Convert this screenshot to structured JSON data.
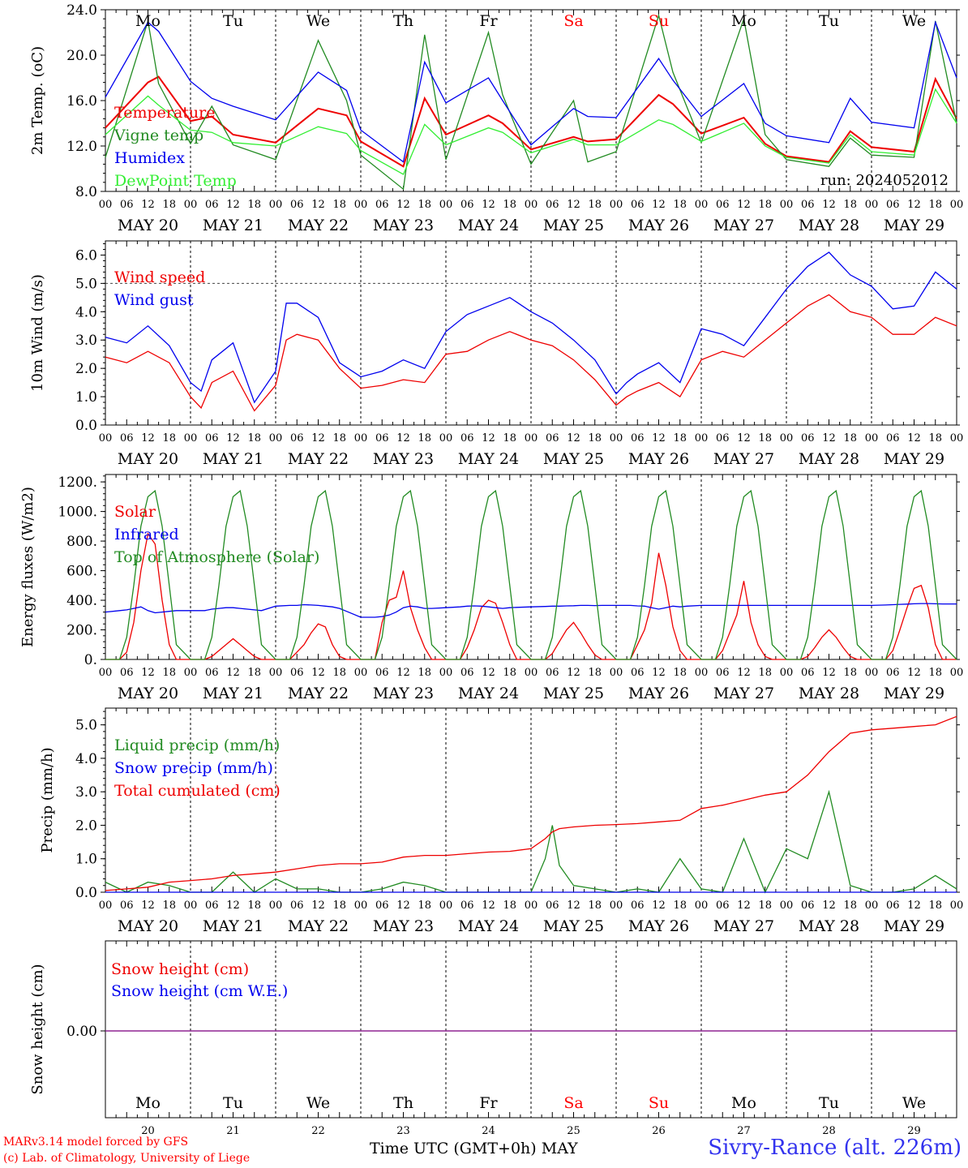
{
  "footer": {
    "credit_line1": "MARv3.14 model forced by GFS",
    "credit_line2": "(c) Lab. of Climatology, University of Liege",
    "time_axis_title": "Time UTC (GMT+0h)",
    "month": "MAY",
    "station": "Sivry-Rance (alt. 226m)"
  },
  "days": {
    "weekdays": [
      "Mo",
      "Tu",
      "We",
      "Th",
      "Fr",
      "Sa",
      "Su",
      "Mo",
      "Tu",
      "We"
    ],
    "weekend_flags": [
      false,
      false,
      false,
      false,
      false,
      true,
      true,
      false,
      false,
      false
    ],
    "date_labels": [
      "MAY 20",
      "MAY 21",
      "MAY 22",
      "MAY 23",
      "MAY 24",
      "MAY 25",
      "MAY 26",
      "MAY 27",
      "MAY 28",
      "MAY 29"
    ],
    "day_numbers": [
      "20",
      "21",
      "22",
      "23",
      "24",
      "25",
      "26",
      "27",
      "28",
      "29"
    ],
    "hour_ticks": [
      "00",
      "06",
      "12",
      "18"
    ],
    "last_hour": "00"
  },
  "colors": {
    "red": "#ee0000",
    "green": "#228b22",
    "blue": "#0000ee",
    "lightgreen": "#33ee33",
    "purple": "#7b1fa2",
    "weekend": "#ff0000"
  },
  "chart_data": [
    {
      "type": "line",
      "ylabel": "2m Temp. (oC)",
      "ylim": [
        8,
        24
      ],
      "yticks": [
        "8.0",
        "12.0",
        "16.0",
        "20.0",
        "24.0"
      ],
      "annotation": "run: 2024052012",
      "x_hours": [
        0,
        12,
        15,
        24,
        30,
        36,
        48,
        60,
        68,
        72,
        84,
        90,
        96,
        108,
        112,
        120,
        132,
        136,
        144,
        156,
        160,
        168,
        180,
        186,
        192,
        204,
        210,
        216,
        228,
        234,
        240
      ],
      "series": [
        {
          "name": "Temperature",
          "color": "red",
          "values": [
            13.6,
            17.6,
            18.1,
            14.2,
            14.6,
            13.0,
            12.3,
            15.3,
            14.7,
            12.4,
            10.2,
            16.2,
            13.0,
            14.7,
            14.0,
            11.7,
            12.8,
            12.4,
            12.6,
            16.5,
            15.7,
            13.1,
            14.5,
            12.2,
            11.1,
            10.6,
            13.3,
            11.9,
            11.5,
            17.9,
            14.4
          ]
        },
        {
          "name": "Vigne temp",
          "color": "green",
          "values": [
            11.0,
            23.0,
            17.5,
            12.2,
            15.5,
            12.1,
            10.8,
            21.3,
            16.0,
            11.2,
            8.2,
            21.8,
            10.8,
            22.0,
            16.5,
            10.4,
            16.0,
            10.6,
            11.5,
            23.5,
            18.5,
            12.3,
            23.2,
            13.0,
            10.8,
            10.2,
            12.7,
            11.2,
            11.0,
            23.0,
            14.0
          ]
        },
        {
          "name": "Humidex",
          "color": "blue",
          "values": [
            16.3,
            22.9,
            22.1,
            17.7,
            16.2,
            15.5,
            14.3,
            18.5,
            16.9,
            13.4,
            10.6,
            19.4,
            15.8,
            18.0,
            16.0,
            12.1,
            15.3,
            14.6,
            14.5,
            19.7,
            17.8,
            14.6,
            17.5,
            14.0,
            12.9,
            12.3,
            16.2,
            14.1,
            13.6,
            22.9,
            18.0
          ]
        },
        {
          "name": "DewPoint Temp",
          "color": "lightgreen",
          "values": [
            13.0,
            16.4,
            15.6,
            13.4,
            13.2,
            12.3,
            12.0,
            13.7,
            13.1,
            11.6,
            9.5,
            13.9,
            12.1,
            13.6,
            13.2,
            11.4,
            12.6,
            12.1,
            12.1,
            14.3,
            13.9,
            12.4,
            14.0,
            12.0,
            11.0,
            10.5,
            13.0,
            11.5,
            11.2,
            17.0,
            14.0
          ]
        }
      ]
    },
    {
      "type": "line",
      "ylabel": "10m Wind (m/s)",
      "ylim": [
        0,
        6.5
      ],
      "yticks": [
        "0.0",
        "1.0",
        "2.0",
        "3.0",
        "4.0",
        "5.0",
        "6.0"
      ],
      "reference_line": 5.0,
      "x_hours": [
        0,
        6,
        12,
        18,
        24,
        27,
        30,
        36,
        42,
        48,
        51,
        54,
        60,
        66,
        72,
        78,
        84,
        90,
        96,
        102,
        108,
        114,
        120,
        126,
        132,
        138,
        144,
        147,
        150,
        156,
        162,
        168,
        174,
        180,
        186,
        192,
        198,
        204,
        210,
        216,
        222,
        228,
        234,
        240
      ],
      "series": [
        {
          "name": "Wind speed",
          "color": "red",
          "values": [
            2.4,
            2.2,
            2.6,
            2.2,
            1.0,
            0.6,
            1.5,
            1.9,
            0.5,
            1.4,
            3.0,
            3.2,
            3.0,
            2.0,
            1.3,
            1.4,
            1.6,
            1.5,
            2.5,
            2.6,
            3.0,
            3.3,
            3.0,
            2.8,
            2.3,
            1.6,
            0.7,
            1.0,
            1.2,
            1.5,
            1.0,
            2.3,
            2.6,
            2.4,
            3.0,
            3.6,
            4.2,
            4.6,
            4.0,
            3.8,
            3.2,
            3.2,
            3.8,
            3.5
          ]
        },
        {
          "name": "Wind gust",
          "color": "blue",
          "values": [
            3.1,
            2.9,
            3.5,
            2.8,
            1.5,
            1.2,
            2.3,
            2.9,
            0.8,
            1.9,
            4.3,
            4.3,
            3.8,
            2.2,
            1.7,
            1.9,
            2.3,
            2.0,
            3.3,
            3.9,
            4.2,
            4.5,
            4.0,
            3.6,
            3.0,
            2.3,
            1.1,
            1.5,
            1.8,
            2.2,
            1.5,
            3.4,
            3.2,
            2.8,
            3.8,
            4.8,
            5.6,
            6.1,
            5.3,
            4.9,
            4.1,
            4.2,
            5.4,
            4.8
          ]
        }
      ]
    },
    {
      "type": "line",
      "ylabel": "Energy fluxes (W/m2)",
      "ylim": [
        0,
        1250
      ],
      "yticks": [
        "0.",
        "200.",
        "400.",
        "600.",
        "800.",
        "1000.",
        "1200."
      ],
      "x_hours": [
        0,
        4,
        6,
        8,
        10,
        12,
        14,
        16,
        18,
        20,
        24,
        28,
        30,
        32,
        34,
        36,
        38,
        40,
        42,
        44,
        48,
        52,
        54,
        56,
        58,
        60,
        62,
        64,
        66,
        68,
        72,
        76,
        78,
        80,
        82,
        84,
        86,
        88,
        90,
        92,
        96,
        100,
        102,
        104,
        106,
        108,
        110,
        112,
        114,
        116,
        120,
        124,
        126,
        128,
        130,
        132,
        134,
        136,
        138,
        140,
        144,
        148,
        150,
        152,
        154,
        156,
        158,
        160,
        162,
        164,
        168,
        172,
        174,
        176,
        178,
        180,
        182,
        184,
        186,
        188,
        192,
        196,
        198,
        200,
        202,
        204,
        206,
        208,
        210,
        212,
        216,
        220,
        222,
        224,
        226,
        228,
        230,
        232,
        234,
        236,
        240
      ],
      "series": [
        {
          "name": "Solar",
          "color": "red",
          "values": [
            0,
            0,
            50,
            250,
            600,
            850,
            780,
            400,
            100,
            0,
            0,
            0,
            20,
            60,
            100,
            140,
            100,
            60,
            20,
            0,
            0,
            0,
            50,
            100,
            180,
            240,
            220,
            100,
            20,
            0,
            0,
            0,
            250,
            400,
            420,
            600,
            350,
            200,
            80,
            0,
            0,
            0,
            80,
            200,
            350,
            400,
            380,
            250,
            100,
            0,
            0,
            0,
            40,
            120,
            200,
            250,
            180,
            100,
            30,
            0,
            0,
            0,
            100,
            200,
            380,
            720,
            500,
            220,
            60,
            0,
            0,
            0,
            60,
            180,
            300,
            530,
            250,
            100,
            20,
            0,
            0,
            0,
            20,
            80,
            150,
            200,
            150,
            80,
            20,
            0,
            0,
            0,
            60,
            200,
            350,
            480,
            500,
            350,
            100,
            0,
            0
          ]
        },
        {
          "name": "Infrared",
          "color": "blue",
          "values": [
            320,
            330,
            335,
            345,
            355,
            330,
            315,
            320,
            325,
            330,
            330,
            330,
            340,
            345,
            350,
            350,
            345,
            340,
            335,
            330,
            360,
            365,
            365,
            370,
            368,
            365,
            360,
            355,
            345,
            325,
            285,
            285,
            290,
            300,
            320,
            350,
            360,
            355,
            345,
            345,
            350,
            355,
            360,
            362,
            360,
            355,
            350,
            345,
            350,
            352,
            355,
            358,
            360,
            360,
            362,
            363,
            365,
            365,
            364,
            365,
            365,
            365,
            362,
            360,
            350,
            340,
            350,
            360,
            355,
            360,
            365,
            365,
            365,
            365,
            365,
            365,
            365,
            365,
            365,
            365,
            365,
            365,
            365,
            365,
            365,
            365,
            365,
            365,
            365,
            365,
            365,
            368,
            370,
            372,
            374,
            376,
            378,
            378,
            376,
            375,
            375
          ]
        },
        {
          "name": "Top of Atmosphere (Solar)",
          "color": "green",
          "values": [
            0,
            0,
            150,
            500,
            900,
            1100,
            1140,
            900,
            500,
            100,
            0,
            0,
            150,
            500,
            900,
            1100,
            1140,
            900,
            500,
            100,
            0,
            0,
            150,
            500,
            900,
            1100,
            1140,
            900,
            500,
            100,
            0,
            0,
            150,
            500,
            900,
            1100,
            1140,
            900,
            500,
            100,
            0,
            0,
            150,
            500,
            900,
            1100,
            1140,
            900,
            500,
            100,
            0,
            0,
            150,
            500,
            900,
            1100,
            1140,
            900,
            500,
            100,
            0,
            0,
            150,
            500,
            900,
            1100,
            1140,
            900,
            500,
            100,
            0,
            0,
            150,
            500,
            900,
            1100,
            1140,
            900,
            500,
            100,
            0,
            0,
            150,
            500,
            900,
            1100,
            1140,
            900,
            500,
            100,
            0,
            0,
            150,
            500,
            900,
            1100,
            1140,
            900,
            500,
            100,
            0
          ]
        }
      ]
    },
    {
      "type": "line",
      "ylabel": "Precip (mm/h)",
      "ylim": [
        0,
        5.5
      ],
      "yticks": [
        "0.0",
        "1.0",
        "2.0",
        "3.0",
        "4.0",
        "5.0"
      ],
      "x_hours": [
        0,
        6,
        12,
        18,
        24,
        30,
        36,
        42,
        48,
        54,
        60,
        66,
        72,
        78,
        84,
        90,
        96,
        102,
        108,
        114,
        120,
        124,
        126,
        128,
        132,
        138,
        144,
        150,
        156,
        162,
        168,
        174,
        180,
        186,
        192,
        198,
        204,
        210,
        216,
        222,
        228,
        234,
        240
      ],
      "series": [
        {
          "name": "Liquid precip (mm/h)",
          "color": "green",
          "values": [
            0.3,
            0.0,
            0.3,
            0.2,
            0.0,
            0.0,
            0.6,
            0.0,
            0.4,
            0.1,
            0.1,
            0.0,
            0.0,
            0.1,
            0.3,
            0.2,
            0.0,
            0.0,
            0.0,
            0.0,
            0.0,
            1.0,
            2.0,
            0.8,
            0.2,
            0.1,
            0.0,
            0.1,
            0.0,
            1.0,
            0.1,
            0.0,
            1.6,
            0.0,
            1.3,
            1.0,
            3.0,
            0.2,
            0.0,
            0.0,
            0.1,
            0.5,
            0.1
          ]
        },
        {
          "name": "Snow precip (mm/h)",
          "color": "blue",
          "values": [
            0,
            0,
            0,
            0,
            0,
            0,
            0,
            0,
            0,
            0,
            0,
            0,
            0,
            0,
            0,
            0,
            0,
            0,
            0,
            0,
            0,
            0,
            0,
            0,
            0,
            0,
            0,
            0,
            0,
            0,
            0,
            0,
            0,
            0,
            0,
            0,
            0,
            0,
            0,
            0,
            0,
            0,
            0
          ]
        },
        {
          "name": "Total cumulated (cm)",
          "color": "red",
          "values": [
            0.05,
            0.1,
            0.15,
            0.3,
            0.35,
            0.4,
            0.5,
            0.55,
            0.6,
            0.7,
            0.8,
            0.85,
            0.85,
            0.9,
            1.05,
            1.1,
            1.1,
            1.15,
            1.2,
            1.22,
            1.3,
            1.6,
            1.8,
            1.9,
            1.95,
            2.0,
            2.02,
            2.05,
            2.1,
            2.15,
            2.5,
            2.6,
            2.75,
            2.9,
            3.0,
            3.5,
            4.2,
            4.75,
            4.85,
            4.9,
            4.95,
            5.0,
            5.25
          ]
        }
      ]
    },
    {
      "type": "line",
      "ylabel": "Snow height (cm)",
      "yticks": [
        "0.00"
      ],
      "x_hours": [
        0,
        240
      ],
      "series": [
        {
          "name": "Snow height (cm)",
          "color": "red",
          "values": [
            0,
            0
          ]
        },
        {
          "name": "Snow height (cm W.E.)",
          "color": "blue",
          "values": [
            0,
            0
          ]
        }
      ]
    }
  ]
}
